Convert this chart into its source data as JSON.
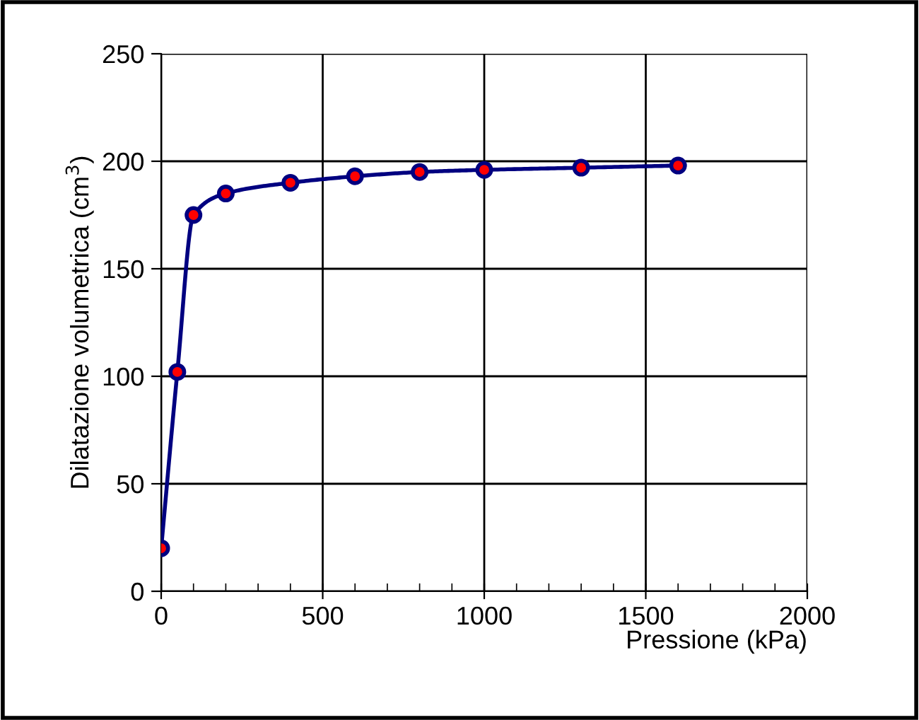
{
  "chart_data": {
    "type": "line",
    "xlabel": "Pressione (kPa)",
    "ylabel": "Dilatazione volumetrica (cm$^{3}$)",
    "x": [
      0,
      50,
      100,
      200,
      400,
      600,
      800,
      1000,
      1300,
      1600
    ],
    "series": [
      {
        "color": "#000080",
        "values": [
          20,
          102,
          175,
          185,
          190,
          193,
          195,
          196,
          197,
          198
        ]
      }
    ],
    "xlim": [
      0,
      2000
    ],
    "xticks": [
      0,
      500,
      1000,
      1500,
      2000
    ],
    "ylim": [
      0,
      250
    ],
    "yticks": [
      0,
      50,
      100,
      150,
      200,
      250
    ],
    "grid": true,
    "marker": "circle",
    "line_style": "solid"
  }
}
